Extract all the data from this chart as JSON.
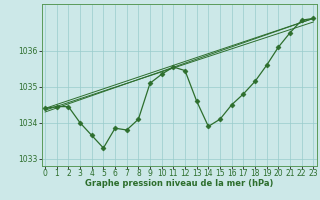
{
  "x": [
    0,
    1,
    2,
    3,
    4,
    5,
    6,
    7,
    8,
    9,
    10,
    11,
    12,
    13,
    14,
    15,
    16,
    17,
    18,
    19,
    20,
    21,
    22,
    23
  ],
  "y": [
    1034.4,
    1034.45,
    1034.45,
    1034.0,
    1033.65,
    1033.3,
    1033.85,
    1033.8,
    1034.1,
    1035.1,
    1035.35,
    1035.55,
    1035.45,
    1034.6,
    1033.9,
    1034.1,
    1034.5,
    1034.8,
    1035.15,
    1035.6,
    1036.1,
    1036.5,
    1036.85,
    1036.9
  ],
  "trend1_x": [
    0,
    23
  ],
  "trend1_y": [
    1034.4,
    1036.9
  ],
  "trend2_x": [
    0,
    23
  ],
  "trend2_y": [
    1034.35,
    1036.8
  ],
  "trend3_x": [
    0,
    23
  ],
  "trend3_y": [
    1034.3,
    1036.9
  ],
  "line_color": "#2d6e2d",
  "bg_color": "#cce8e8",
  "grid_color": "#99cccc",
  "xlabel": "Graphe pression niveau de la mer (hPa)",
  "xtick_labels": [
    "0",
    "1",
    "2",
    "3",
    "4",
    "5",
    "6",
    "7",
    "8",
    "9",
    "10",
    "11",
    "12",
    "13",
    "14",
    "15",
    "16",
    "17",
    "18",
    "19",
    "20",
    "21",
    "22",
    "23"
  ],
  "ylim": [
    1032.8,
    1037.3
  ],
  "xlim": [
    -0.3,
    23.3
  ],
  "yticks": [
    1033,
    1034,
    1035,
    1036
  ],
  "marker": "D",
  "markersize": 2.5,
  "linewidth": 0.9,
  "trend_linewidth": 0.7,
  "xlabel_fontsize": 6.0,
  "tick_fontsize": 5.5
}
